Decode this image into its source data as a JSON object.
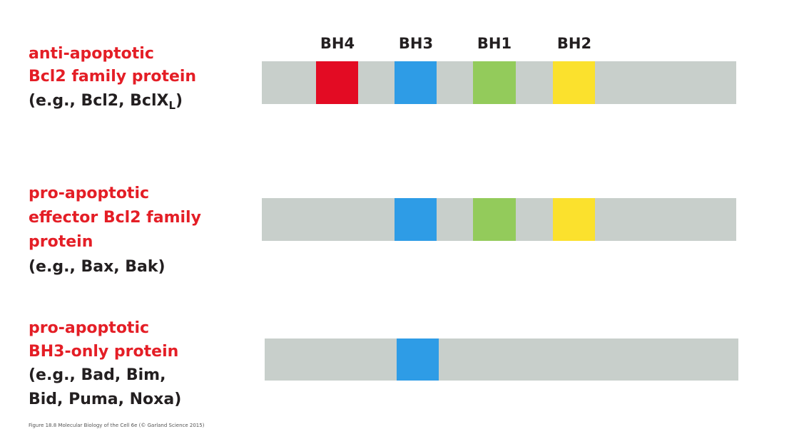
{
  "domains": [
    "BH4",
    "BH3",
    "BH1",
    "BH2"
  ],
  "rows": [
    {
      "label": [
        "anti-apoptotic",
        "Bcl2 family protein"
      ],
      "example": {
        "text": "(e.g., Bcl2, BclX",
        "subscript": "L",
        "suffix": ")"
      }
    },
    {
      "label": [
        "pro-apoptotic",
        "effector Bcl2 family",
        "protein"
      ],
      "example": [
        "(e.g., Bax, Bak)"
      ]
    },
    {
      "label": [
        "pro-apoptotic",
        "BH3-only protein"
      ],
      "example": [
        "(e.g., Bad, Bim,",
        "Bid, Puma, Noxa)"
      ]
    }
  ],
  "caption": "Figure 18.8 Molecular Biology of the Cell 6e (© Garland Science 2015)"
}
